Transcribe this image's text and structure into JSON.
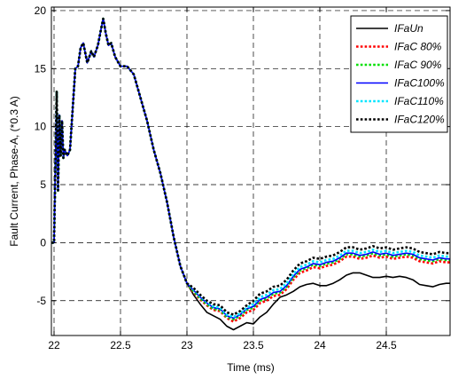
{
  "chart_data": {
    "type": "line",
    "title": "",
    "xlabel": "Time (ms)",
    "ylabel": "Fault Current, Phase-A, (*0.3 A)",
    "xlim": [
      21.98,
      24.98
    ],
    "ylim": [
      -8,
      20.3
    ],
    "xticks": [
      22,
      22.5,
      23,
      23.5,
      24,
      24.5
    ],
    "xtick_labels": [
      "22",
      "22.5",
      "23",
      "23.5",
      "24",
      "24.5"
    ],
    "yticks": [
      -5,
      0,
      5,
      10,
      15,
      20
    ],
    "ytick_labels": [
      "-5",
      "0",
      "5",
      "10",
      "15",
      "20"
    ],
    "grid": true,
    "grid_style": "dashed",
    "legend_position": "top-right",
    "common_start": [
      [
        21.98,
        0
      ],
      [
        22.0,
        0
      ],
      [
        22.02,
        13
      ],
      [
        22.03,
        4.5
      ],
      [
        22.04,
        11
      ],
      [
        22.05,
        7.5
      ],
      [
        22.06,
        10.5
      ],
      [
        22.07,
        7.3
      ],
      [
        22.08,
        8.0
      ],
      [
        22.1,
        7.5
      ],
      [
        22.12,
        8.0
      ],
      [
        22.14,
        11.5
      ],
      [
        22.16,
        15.0
      ],
      [
        22.18,
        15.2
      ],
      [
        22.2,
        16.8
      ],
      [
        22.22,
        17.2
      ],
      [
        22.25,
        15.5
      ],
      [
        22.28,
        16.5
      ],
      [
        22.3,
        16.0
      ],
      [
        22.33,
        17.0
      ],
      [
        22.35,
        18.2
      ],
      [
        22.37,
        19.3
      ],
      [
        22.39,
        18.0
      ],
      [
        22.41,
        17.0
      ],
      [
        22.43,
        17.2
      ],
      [
        22.46,
        16.0
      ],
      [
        22.5,
        15.2
      ],
      [
        22.55,
        15.2
      ],
      [
        22.6,
        14.5
      ],
      [
        22.65,
        12.5
      ],
      [
        22.7,
        10.5
      ],
      [
        22.75,
        8.0
      ],
      [
        22.8,
        6.0
      ],
      [
        22.85,
        3.5
      ],
      [
        22.9,
        0.5
      ],
      [
        22.95,
        -2.0
      ],
      [
        23.0,
        -3.5
      ]
    ],
    "series": [
      {
        "name": "IFaUn",
        "color": "#000000",
        "dash": "solid",
        "tail": [
          [
            23.05,
            -4.5
          ],
          [
            23.1,
            -5.3
          ],
          [
            23.15,
            -6.0
          ],
          [
            23.2,
            -6.3
          ],
          [
            23.25,
            -6.6
          ],
          [
            23.3,
            -7.2
          ],
          [
            23.35,
            -7.5
          ],
          [
            23.4,
            -7.2
          ],
          [
            23.45,
            -6.9
          ],
          [
            23.5,
            -7.0
          ],
          [
            23.55,
            -6.4
          ],
          [
            23.6,
            -6.0
          ],
          [
            23.65,
            -5.3
          ],
          [
            23.7,
            -4.7
          ],
          [
            23.75,
            -4.5
          ],
          [
            23.8,
            -4.2
          ],
          [
            23.85,
            -3.8
          ],
          [
            23.9,
            -3.6
          ],
          [
            23.95,
            -3.5
          ],
          [
            24.0,
            -3.7
          ],
          [
            24.05,
            -3.7
          ],
          [
            24.1,
            -3.5
          ],
          [
            24.15,
            -3.2
          ],
          [
            24.2,
            -2.8
          ],
          [
            24.25,
            -2.6
          ],
          [
            24.3,
            -2.6
          ],
          [
            24.35,
            -2.8
          ],
          [
            24.4,
            -3.0
          ],
          [
            24.45,
            -3.0
          ],
          [
            24.5,
            -2.9
          ],
          [
            24.55,
            -3.0
          ],
          [
            24.6,
            -2.9
          ],
          [
            24.65,
            -3.0
          ],
          [
            24.7,
            -3.2
          ],
          [
            24.75,
            -3.6
          ],
          [
            24.8,
            -3.7
          ],
          [
            24.85,
            -3.8
          ],
          [
            24.9,
            -3.6
          ],
          [
            24.95,
            -3.5
          ],
          [
            24.98,
            -3.5
          ]
        ]
      },
      {
        "name": "IFaC 80%",
        "color": "#ff0000",
        "dash": "dotted",
        "tail": [
          [
            23.05,
            -4.3
          ],
          [
            23.1,
            -4.9
          ],
          [
            23.15,
            -5.4
          ],
          [
            23.2,
            -5.8
          ],
          [
            23.25,
            -5.9
          ],
          [
            23.3,
            -6.5
          ],
          [
            23.35,
            -6.8
          ],
          [
            23.4,
            -6.5
          ],
          [
            23.45,
            -6.0
          ],
          [
            23.5,
            -5.8
          ],
          [
            23.55,
            -5.2
          ],
          [
            23.6,
            -5.0
          ],
          [
            23.65,
            -4.6
          ],
          [
            23.7,
            -4.5
          ],
          [
            23.75,
            -4.0
          ],
          [
            23.8,
            -3.2
          ],
          [
            23.85,
            -2.6
          ],
          [
            23.9,
            -2.4
          ],
          [
            23.95,
            -2.1
          ],
          [
            24.0,
            -2.2
          ],
          [
            24.05,
            -2.0
          ],
          [
            24.1,
            -1.9
          ],
          [
            24.15,
            -1.6
          ],
          [
            24.2,
            -1.2
          ],
          [
            24.25,
            -1.2
          ],
          [
            24.3,
            -1.4
          ],
          [
            24.35,
            -1.3
          ],
          [
            24.4,
            -1.1
          ],
          [
            24.45,
            -1.3
          ],
          [
            24.5,
            -1.2
          ],
          [
            24.55,
            -1.4
          ],
          [
            24.6,
            -1.3
          ],
          [
            24.65,
            -1.2
          ],
          [
            24.7,
            -1.3
          ],
          [
            24.75,
            -1.6
          ],
          [
            24.8,
            -1.7
          ],
          [
            24.85,
            -1.8
          ],
          [
            24.9,
            -1.6
          ],
          [
            24.95,
            -1.7
          ],
          [
            24.98,
            -1.7
          ]
        ]
      },
      {
        "name": "IFaC 90%",
        "color": "#00e000",
        "dash": "dotted",
        "tail": [
          [
            23.05,
            -4.2
          ],
          [
            23.1,
            -4.8
          ],
          [
            23.15,
            -5.3
          ],
          [
            23.2,
            -5.7
          ],
          [
            23.25,
            -5.8
          ],
          [
            23.3,
            -6.4
          ],
          [
            23.35,
            -6.6
          ],
          [
            23.4,
            -6.3
          ],
          [
            23.45,
            -5.8
          ],
          [
            23.5,
            -5.6
          ],
          [
            23.55,
            -5.0
          ],
          [
            23.6,
            -4.8
          ],
          [
            23.65,
            -4.4
          ],
          [
            23.7,
            -4.3
          ],
          [
            23.75,
            -3.8
          ],
          [
            23.8,
            -3.0
          ],
          [
            23.85,
            -2.4
          ],
          [
            23.9,
            -2.2
          ],
          [
            23.95,
            -1.9
          ],
          [
            24.0,
            -2.0
          ],
          [
            24.05,
            -1.8
          ],
          [
            24.1,
            -1.7
          ],
          [
            24.15,
            -1.4
          ],
          [
            24.2,
            -1.0
          ],
          [
            24.25,
            -1.0
          ],
          [
            24.3,
            -1.2
          ],
          [
            24.35,
            -1.1
          ],
          [
            24.4,
            -0.9
          ],
          [
            24.45,
            -1.1
          ],
          [
            24.5,
            -1.0
          ],
          [
            24.55,
            -1.2
          ],
          [
            24.6,
            -1.1
          ],
          [
            24.65,
            -1.0
          ],
          [
            24.7,
            -1.1
          ],
          [
            24.75,
            -1.4
          ],
          [
            24.8,
            -1.5
          ],
          [
            24.85,
            -1.6
          ],
          [
            24.9,
            -1.4
          ],
          [
            24.95,
            -1.5
          ],
          [
            24.98,
            -1.5
          ]
        ]
      },
      {
        "name": "IFaC100%",
        "color": "#0000ff",
        "dash": "solid",
        "tail": [
          [
            23.05,
            -4.1
          ],
          [
            23.1,
            -4.7
          ],
          [
            23.15,
            -5.2
          ],
          [
            23.2,
            -5.6
          ],
          [
            23.25,
            -5.7
          ],
          [
            23.3,
            -6.3
          ],
          [
            23.35,
            -6.5
          ],
          [
            23.4,
            -6.2
          ],
          [
            23.45,
            -5.7
          ],
          [
            23.5,
            -5.5
          ],
          [
            23.55,
            -4.9
          ],
          [
            23.6,
            -4.7
          ],
          [
            23.65,
            -4.3
          ],
          [
            23.7,
            -4.2
          ],
          [
            23.75,
            -3.7
          ],
          [
            23.8,
            -2.9
          ],
          [
            23.85,
            -2.3
          ],
          [
            23.9,
            -2.1
          ],
          [
            23.95,
            -1.8
          ],
          [
            24.0,
            -1.9
          ],
          [
            24.05,
            -1.7
          ],
          [
            24.1,
            -1.6
          ],
          [
            24.15,
            -1.3
          ],
          [
            24.2,
            -0.9
          ],
          [
            24.25,
            -0.9
          ],
          [
            24.3,
            -1.1
          ],
          [
            24.35,
            -1.0
          ],
          [
            24.4,
            -0.8
          ],
          [
            24.45,
            -1.0
          ],
          [
            24.5,
            -0.9
          ],
          [
            24.55,
            -1.1
          ],
          [
            24.6,
            -1.0
          ],
          [
            24.65,
            -0.9
          ],
          [
            24.7,
            -1.0
          ],
          [
            24.75,
            -1.3
          ],
          [
            24.8,
            -1.4
          ],
          [
            24.85,
            -1.5
          ],
          [
            24.9,
            -1.3
          ],
          [
            24.95,
            -1.4
          ],
          [
            24.98,
            -1.4
          ]
        ]
      },
      {
        "name": "IFaC110%",
        "color": "#00e5ff",
        "dash": "dotted",
        "tail": [
          [
            23.05,
            -4.0
          ],
          [
            23.1,
            -4.6
          ],
          [
            23.15,
            -5.1
          ],
          [
            23.2,
            -5.5
          ],
          [
            23.25,
            -5.6
          ],
          [
            23.3,
            -6.2
          ],
          [
            23.35,
            -6.4
          ],
          [
            23.4,
            -6.1
          ],
          [
            23.45,
            -5.6
          ],
          [
            23.5,
            -5.3
          ],
          [
            23.55,
            -4.7
          ],
          [
            23.6,
            -4.5
          ],
          [
            23.65,
            -4.1
          ],
          [
            23.7,
            -4.0
          ],
          [
            23.75,
            -3.5
          ],
          [
            23.8,
            -2.7
          ],
          [
            23.85,
            -2.1
          ],
          [
            23.9,
            -1.9
          ],
          [
            23.95,
            -1.6
          ],
          [
            24.0,
            -1.7
          ],
          [
            24.05,
            -1.5
          ],
          [
            24.1,
            -1.4
          ],
          [
            24.15,
            -1.1
          ],
          [
            24.2,
            -0.7
          ],
          [
            24.25,
            -0.7
          ],
          [
            24.3,
            -0.9
          ],
          [
            24.35,
            -0.8
          ],
          [
            24.4,
            -0.6
          ],
          [
            24.45,
            -0.8
          ],
          [
            24.5,
            -0.7
          ],
          [
            24.55,
            -0.9
          ],
          [
            24.6,
            -0.8
          ],
          [
            24.65,
            -0.7
          ],
          [
            24.7,
            -0.8
          ],
          [
            24.75,
            -1.1
          ],
          [
            24.8,
            -1.2
          ],
          [
            24.85,
            -1.3
          ],
          [
            24.9,
            -1.1
          ],
          [
            24.95,
            -1.2
          ],
          [
            24.98,
            -1.2
          ]
        ]
      },
      {
        "name": "IFaC120%",
        "color": "#000000",
        "dash": "dotted",
        "tail": [
          [
            23.05,
            -3.9
          ],
          [
            23.1,
            -4.5
          ],
          [
            23.15,
            -5.0
          ],
          [
            23.2,
            -5.3
          ],
          [
            23.25,
            -5.4
          ],
          [
            23.3,
            -6.0
          ],
          [
            23.35,
            -6.2
          ],
          [
            23.4,
            -5.9
          ],
          [
            23.45,
            -5.4
          ],
          [
            23.5,
            -5.0
          ],
          [
            23.55,
            -4.4
          ],
          [
            23.6,
            -4.2
          ],
          [
            23.65,
            -3.8
          ],
          [
            23.7,
            -3.7
          ],
          [
            23.75,
            -3.2
          ],
          [
            23.8,
            -2.4
          ],
          [
            23.85,
            -1.8
          ],
          [
            23.9,
            -1.6
          ],
          [
            23.95,
            -1.3
          ],
          [
            24.0,
            -1.4
          ],
          [
            24.05,
            -1.2
          ],
          [
            24.1,
            -1.1
          ],
          [
            24.15,
            -0.8
          ],
          [
            24.2,
            -0.4
          ],
          [
            24.25,
            -0.4
          ],
          [
            24.3,
            -0.6
          ],
          [
            24.35,
            -0.5
          ],
          [
            24.4,
            -0.3
          ],
          [
            24.45,
            -0.5
          ],
          [
            24.5,
            -0.4
          ],
          [
            24.55,
            -0.6
          ],
          [
            24.6,
            -0.5
          ],
          [
            24.65,
            -0.4
          ],
          [
            24.7,
            -0.5
          ],
          [
            24.75,
            -0.8
          ],
          [
            24.8,
            -0.9
          ],
          [
            24.85,
            -1.0
          ],
          [
            24.9,
            -0.8
          ],
          [
            24.95,
            -0.9
          ],
          [
            24.98,
            -0.9
          ]
        ]
      }
    ]
  }
}
